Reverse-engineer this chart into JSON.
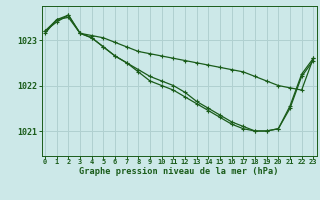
{
  "bg_color": "#cce8e8",
  "grid_color": "#b0d0d0",
  "line_color": "#1a5c1a",
  "title": "Graphe pression niveau de la mer (hPa)",
  "yticks": [
    1021,
    1022,
    1023
  ],
  "xticks": [
    0,
    1,
    2,
    3,
    4,
    5,
    6,
    7,
    8,
    9,
    10,
    11,
    12,
    13,
    14,
    15,
    16,
    17,
    18,
    19,
    20,
    21,
    22,
    23
  ],
  "ylim": [
    1020.45,
    1023.75
  ],
  "xlim": [
    -0.3,
    23.3
  ],
  "series1_x": [
    0,
    1,
    2,
    3,
    4,
    5,
    6,
    7,
    8,
    9,
    10,
    11,
    12,
    13,
    14,
    15,
    16,
    17,
    18,
    19,
    20,
    21,
    22,
    23
  ],
  "series1_y": [
    1023.15,
    1023.45,
    1023.5,
    1023.15,
    1023.1,
    1023.05,
    1022.95,
    1022.85,
    1022.75,
    1022.7,
    1022.65,
    1022.6,
    1022.55,
    1022.5,
    1022.45,
    1022.4,
    1022.35,
    1022.3,
    1022.2,
    1022.1,
    1022.0,
    1021.95,
    1021.9,
    1022.6
  ],
  "series2_x": [
    0,
    1,
    2,
    3,
    4,
    5,
    6,
    7,
    8,
    9,
    10,
    11,
    12,
    13,
    14,
    15,
    16,
    17,
    18,
    19,
    20,
    21,
    22,
    23
  ],
  "series2_y": [
    1023.2,
    1023.4,
    1023.55,
    1023.15,
    1023.05,
    1022.85,
    1022.65,
    1022.5,
    1022.35,
    1022.2,
    1022.1,
    1022.0,
    1021.85,
    1021.65,
    1021.5,
    1021.35,
    1021.2,
    1021.1,
    1021.0,
    1021.0,
    1021.05,
    1021.5,
    1022.2,
    1022.55
  ],
  "series3_x": [
    0,
    1,
    2,
    3,
    4,
    5,
    6,
    7,
    8,
    9,
    10,
    11,
    12,
    13,
    14,
    15,
    16,
    17,
    18,
    19,
    20,
    21,
    22,
    23
  ],
  "series3_y": [
    1023.2,
    1023.45,
    1023.55,
    1023.15,
    1023.05,
    1022.85,
    1022.65,
    1022.5,
    1022.3,
    1022.1,
    1022.0,
    1021.9,
    1021.75,
    1021.6,
    1021.45,
    1021.3,
    1021.15,
    1021.05,
    1021.0,
    1021.0,
    1021.05,
    1021.55,
    1022.25,
    1022.6
  ]
}
